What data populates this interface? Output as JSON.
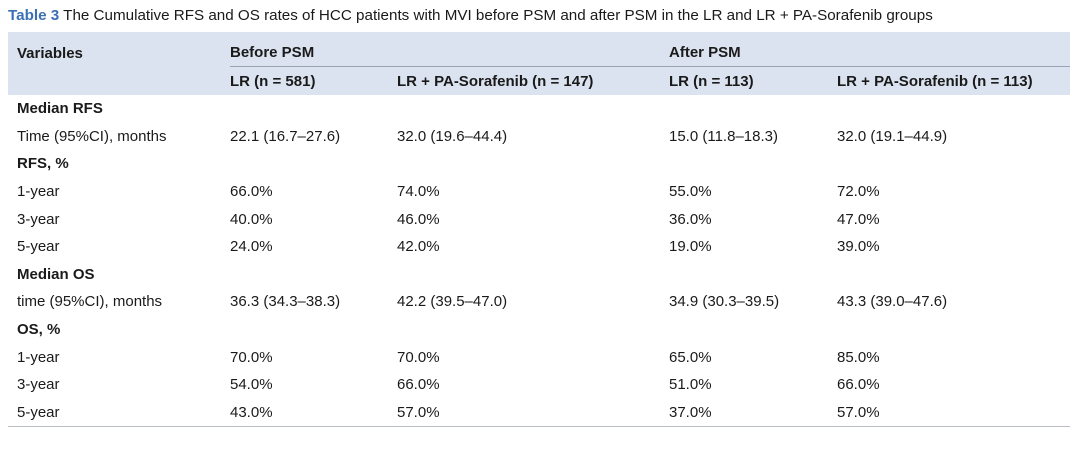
{
  "caption": {
    "label": "Table 3",
    "text": "The Cumulative RFS and OS rates of HCC patients with MVI before PSM and after PSM in the LR and LR + PA-Sorafenib groups"
  },
  "header": {
    "variables": "Variables",
    "before_psm": "Before PSM",
    "after_psm": "After PSM",
    "subcols": [
      "LR (n = 581)",
      "LR + PA-Sorafenib (n = 147)",
      "LR (n = 113)",
      "LR + PA-Sorafenib (n = 113)"
    ]
  },
  "rows": [
    {
      "label": "Median RFS",
      "section": true,
      "values": [
        "",
        "",
        "",
        ""
      ]
    },
    {
      "label": "Time (95%CI), months",
      "section": false,
      "values": [
        "22.1 (16.7–27.6)",
        "32.0 (19.6–44.4)",
        "15.0 (11.8–18.3)",
        "32.0 (19.1–44.9)"
      ]
    },
    {
      "label": "RFS, %",
      "section": true,
      "values": [
        "",
        "",
        "",
        ""
      ]
    },
    {
      "label": "1-year",
      "section": false,
      "values": [
        "66.0%",
        "74.0%",
        "55.0%",
        "72.0%"
      ]
    },
    {
      "label": "3-year",
      "section": false,
      "values": [
        "40.0%",
        "46.0%",
        "36.0%",
        "47.0%"
      ]
    },
    {
      "label": "5-year",
      "section": false,
      "values": [
        "24.0%",
        "42.0%",
        "19.0%",
        "39.0%"
      ]
    },
    {
      "label": "Median OS",
      "section": true,
      "values": [
        "",
        "",
        "",
        ""
      ]
    },
    {
      "label": "time (95%CI), months",
      "section": false,
      "values": [
        "36.3 (34.3–38.3)",
        "42.2 (39.5–47.0)",
        "34.9 (30.3–39.5)",
        "43.3 (39.0–47.6)"
      ]
    },
    {
      "label": "OS, %",
      "section": true,
      "values": [
        "",
        "",
        "",
        ""
      ]
    },
    {
      "label": "1-year",
      "section": false,
      "values": [
        "70.0%",
        "70.0%",
        "65.0%",
        "85.0%"
      ]
    },
    {
      "label": "3-year",
      "section": false,
      "values": [
        "54.0%",
        "66.0%",
        "51.0%",
        "66.0%"
      ]
    },
    {
      "label": "5-year",
      "section": false,
      "values": [
        "43.0%",
        "57.0%",
        "37.0%",
        "57.0%"
      ]
    }
  ]
}
